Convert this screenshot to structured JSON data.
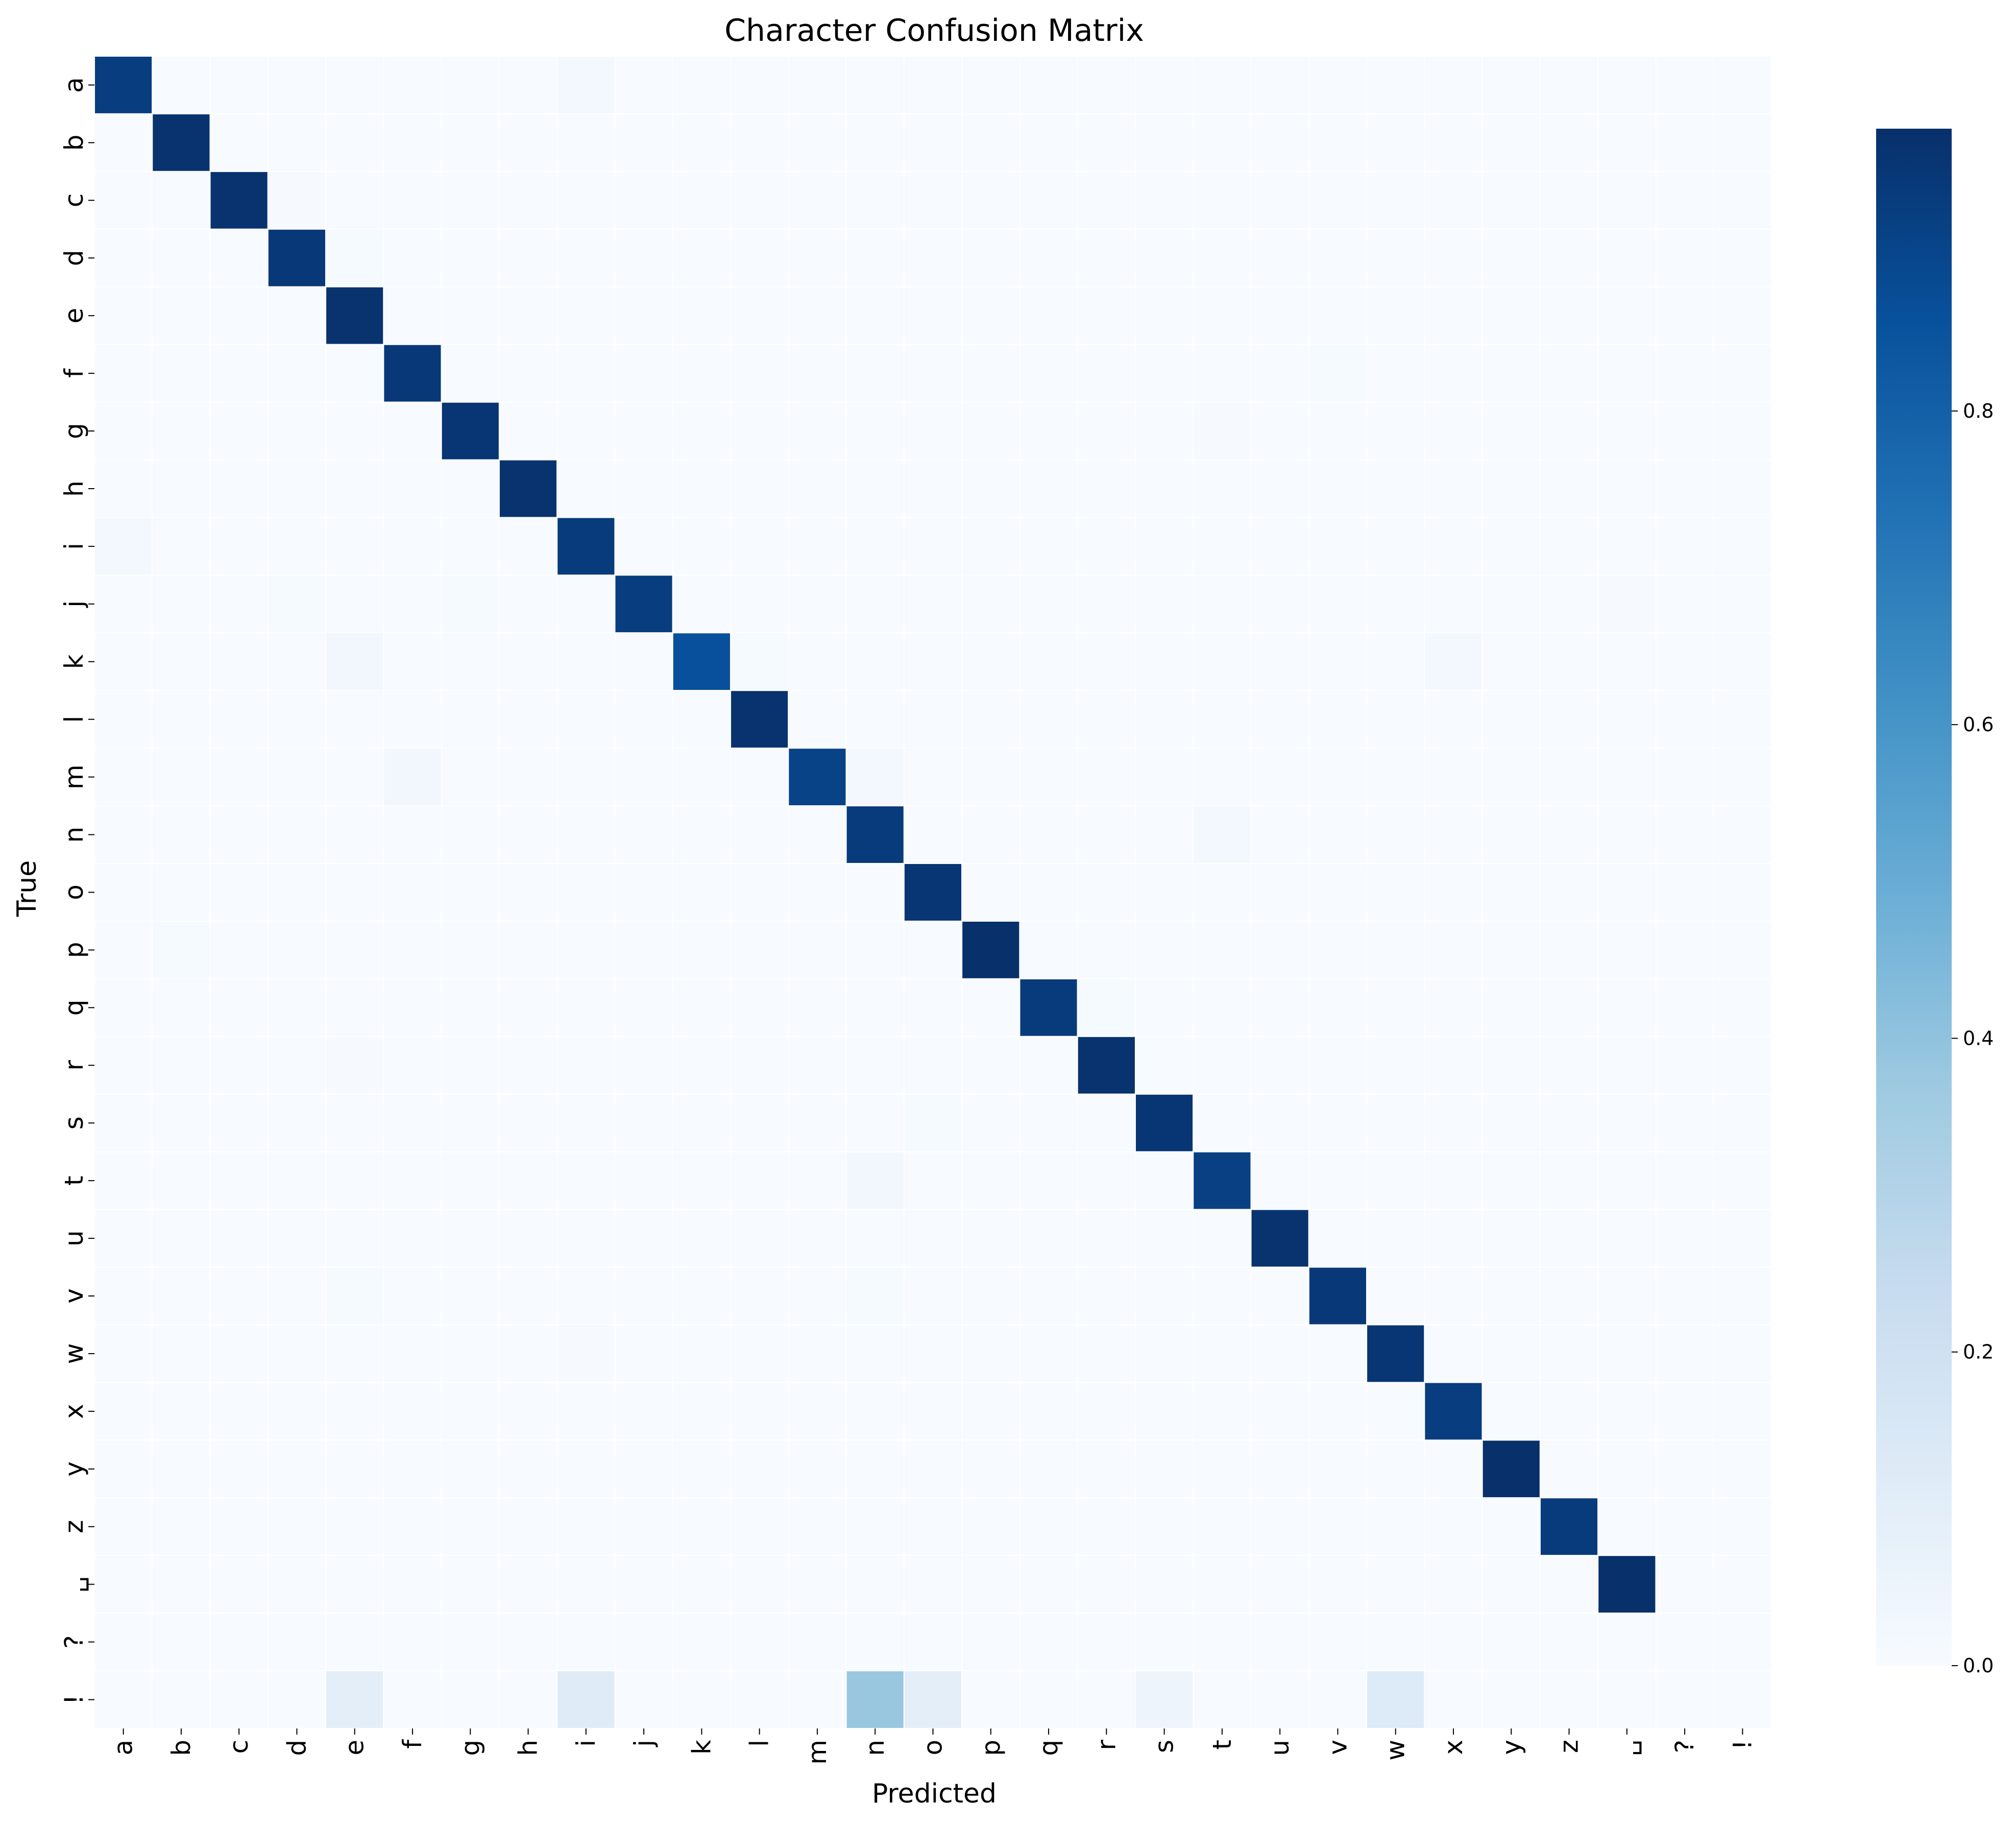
{
  "chart_data": {
    "type": "heatmap",
    "title": "Character Confusion Matrix",
    "xlabel": "Predicted",
    "ylabel": "True",
    "labels": [
      "a",
      "b",
      "c",
      "d",
      "e",
      "f",
      "g",
      "h",
      "i",
      "j",
      "k",
      "l",
      "m",
      "n",
      "o",
      "p",
      "q",
      "r",
      "s",
      "t",
      "u",
      "v",
      "w",
      "x",
      "y",
      "z",
      "␣",
      "?",
      "!"
    ],
    "diagonal": [
      0.93,
      0.97,
      0.97,
      0.95,
      0.97,
      0.95,
      0.96,
      0.97,
      0.94,
      0.93,
      0.86,
      0.97,
      0.91,
      0.94,
      0.96,
      0.98,
      0.94,
      0.97,
      0.96,
      0.92,
      0.97,
      0.95,
      0.96,
      0.93,
      0.98,
      0.94,
      0.98,
      0.0,
      0.0
    ],
    "off_diagonal": [
      {
        "true": "a",
        "pred": "i",
        "value": 0.02
      },
      {
        "true": "c",
        "pred": "d",
        "value": 0.005
      },
      {
        "true": "d",
        "pred": "e",
        "value": 0.01
      },
      {
        "true": "f",
        "pred": "v",
        "value": 0.01
      },
      {
        "true": "g",
        "pred": "t",
        "value": 0.005
      },
      {
        "true": "i",
        "pred": "a",
        "value": 0.02
      },
      {
        "true": "j",
        "pred": "d",
        "value": 0.01
      },
      {
        "true": "j",
        "pred": "g",
        "value": 0.01
      },
      {
        "true": "j",
        "pred": "␣",
        "value": 0.005
      },
      {
        "true": "k",
        "pred": "e",
        "value": 0.03
      },
      {
        "true": "k",
        "pred": "l",
        "value": 0.01
      },
      {
        "true": "k",
        "pred": "x",
        "value": 0.02
      },
      {
        "true": "m",
        "pred": "f",
        "value": 0.03
      },
      {
        "true": "m",
        "pred": "n",
        "value": 0.02
      },
      {
        "true": "n",
        "pred": "t",
        "value": 0.02
      },
      {
        "true": "p",
        "pred": "b",
        "value": 0.01
      },
      {
        "true": "q",
        "pred": "r",
        "value": 0.01
      },
      {
        "true": "r",
        "pred": "e",
        "value": 0.005
      },
      {
        "true": "s",
        "pred": "o",
        "value": 0.01
      },
      {
        "true": "t",
        "pred": "n",
        "value": 0.03
      },
      {
        "true": "v",
        "pred": "e",
        "value": 0.01
      },
      {
        "true": "v",
        "pred": "n",
        "value": 0.01
      },
      {
        "true": "w",
        "pred": "i",
        "value": 0.005
      },
      {
        "true": "!",
        "pred": "e",
        "value": 0.1
      },
      {
        "true": "!",
        "pred": "i",
        "value": 0.12
      },
      {
        "true": "!",
        "pred": "n",
        "value": 0.38
      },
      {
        "true": "!",
        "pred": "o",
        "value": 0.1
      },
      {
        "true": "!",
        "pred": "s",
        "value": 0.05
      },
      {
        "true": "!",
        "pred": "w",
        "value": 0.13
      }
    ],
    "colorbar": {
      "colormap": "Blues",
      "min": 0.0,
      "max": 0.98,
      "ticks": [
        0.0,
        0.2,
        0.4,
        0.6,
        0.8
      ],
      "tick_labels": [
        "0.0",
        "0.2",
        "0.4",
        "0.6",
        "0.8"
      ]
    },
    "grid": false,
    "cell_border_color": "#ffffff"
  }
}
